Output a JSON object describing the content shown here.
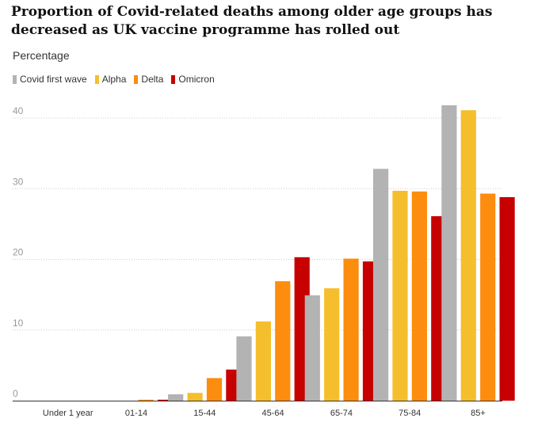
{
  "chart_data": {
    "type": "bar",
    "title": "Proportion of Covid-related deaths among older age groups has decreased as UK vaccine programme has rolled out",
    "ylabel": "Percentage",
    "xlabel": "",
    "categories": [
      "Under 1 year",
      "01-14",
      "15-44",
      "45-64",
      "65-74",
      "75-84",
      "85+"
    ],
    "ylim": [
      0,
      42
    ],
    "yticks": [
      0,
      10,
      20,
      30,
      40
    ],
    "grid": true,
    "legend_position": "top-left",
    "series": [
      {
        "name": "Covid first wave",
        "color": "#b3b3b3",
        "values": [
          0,
          0,
          0.9,
          9.1,
          14.9,
          32.8,
          41.8
        ]
      },
      {
        "name": "Alpha",
        "color": "#f5be2c",
        "values": [
          0,
          0,
          1.1,
          11.2,
          15.9,
          29.7,
          41.1
        ]
      },
      {
        "name": "Delta",
        "color": "#fc8d0f",
        "values": [
          0,
          0.1,
          3.2,
          16.9,
          20.1,
          29.6,
          29.3
        ]
      },
      {
        "name": "Omicron",
        "color": "#c70000",
        "values": [
          0,
          0.1,
          4.4,
          20.3,
          19.7,
          26.1,
          28.8
        ]
      }
    ]
  }
}
